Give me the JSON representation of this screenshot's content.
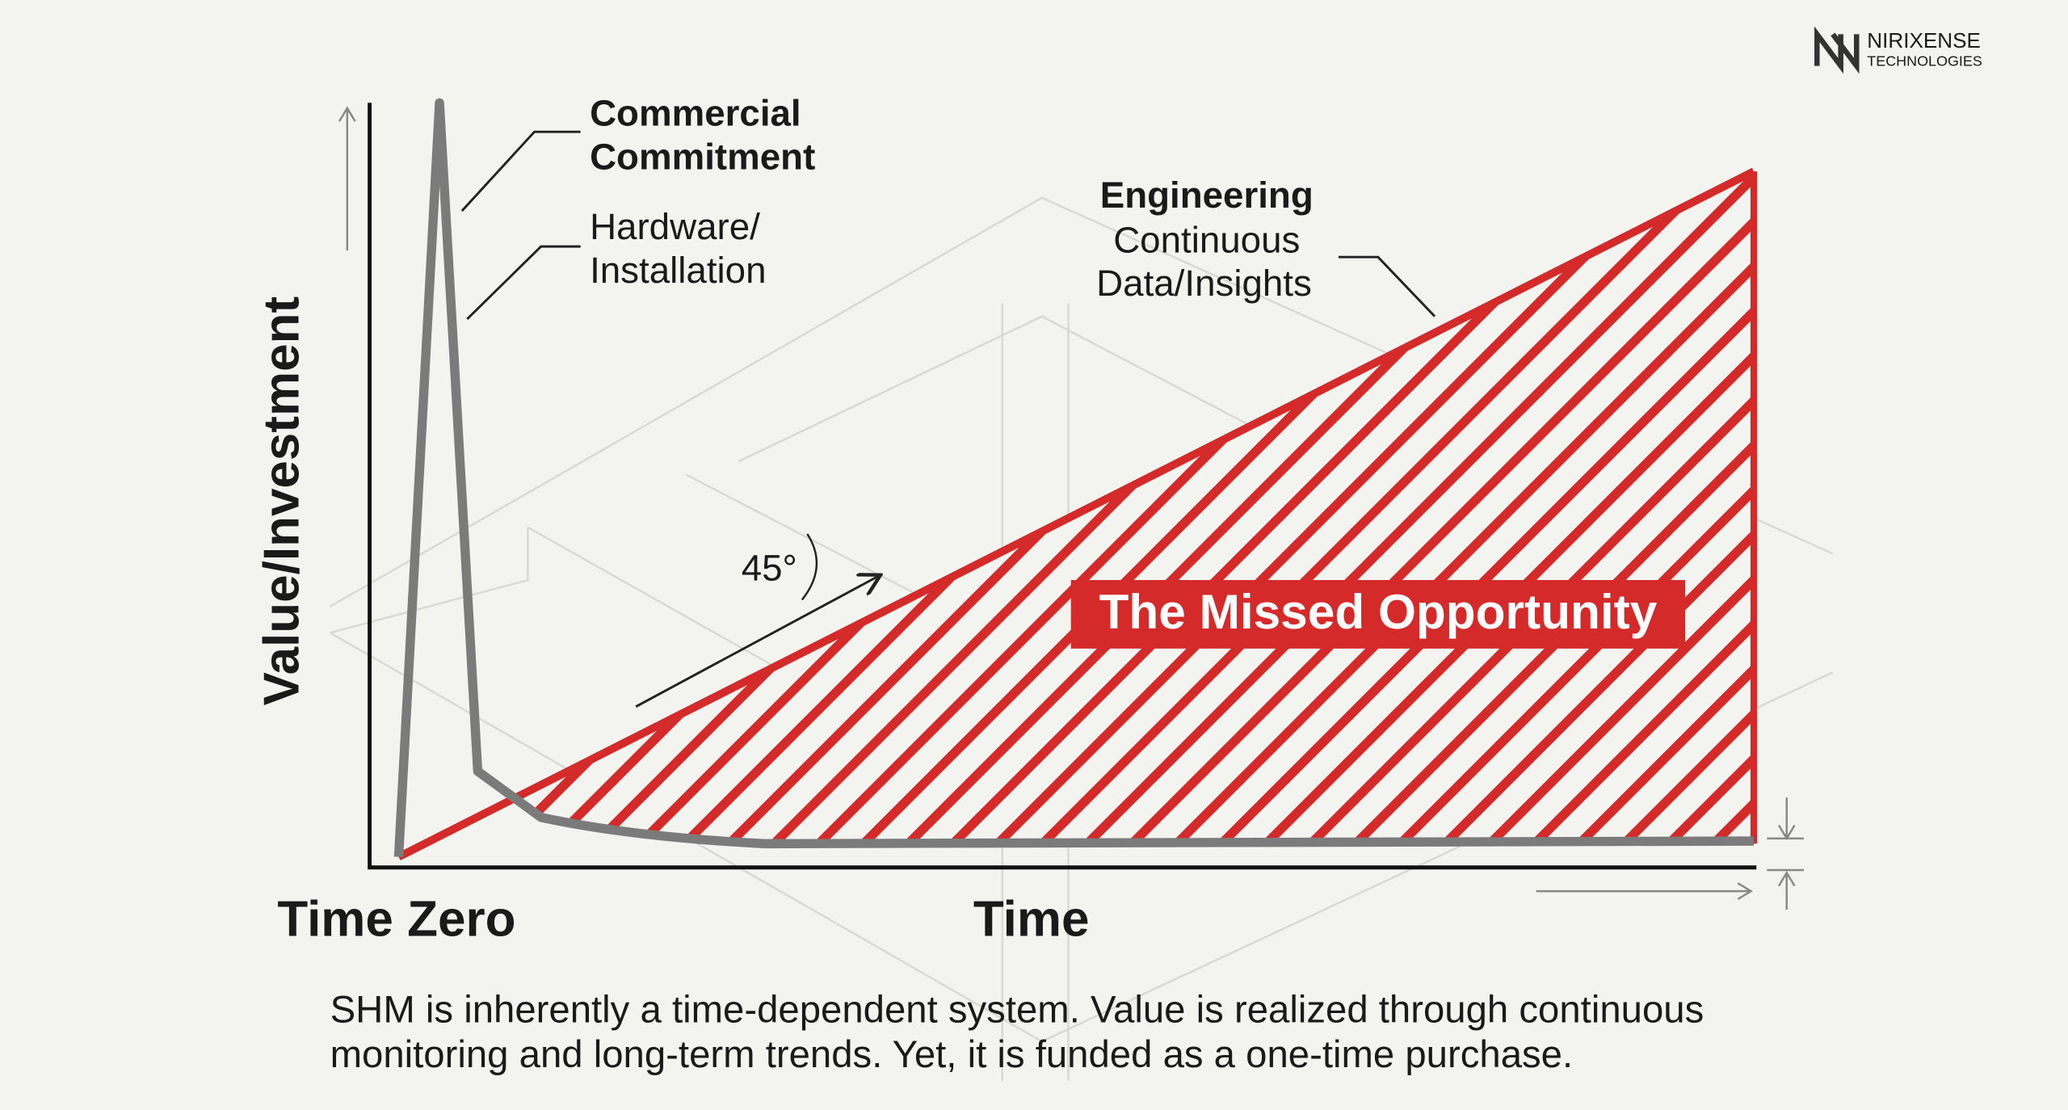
{
  "logo": {
    "name": "NIRIXENSE",
    "sub": "TECHNOLOGIES"
  },
  "y_axis_label": "Value/Investment",
  "x_axis_labels": {
    "start": "Time Zero",
    "end": "Time"
  },
  "annotations": {
    "commercial": [
      "Commercial",
      "Commitment"
    ],
    "hardware": [
      "Hardware/",
      "Installation"
    ],
    "engineering_title": "Engineering",
    "engineering": [
      "Continuous",
      "Data/Insights"
    ],
    "angle": "45°"
  },
  "highlight": "The Missed Opportunity",
  "caption": [
    "SHM is inherently a time-dependent system. Value is realized through continuous",
    "monitoring and long-term trends. Yet, it is funded as a one-time purchase."
  ]
}
